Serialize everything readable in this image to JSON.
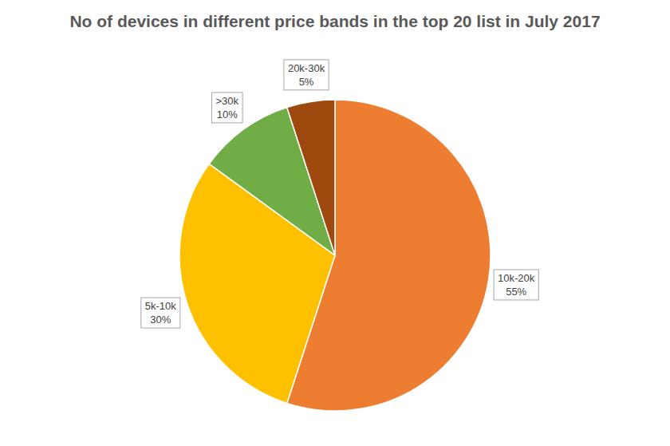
{
  "chart_data": {
    "type": "pie",
    "title": "No of devices in different price bands in the top 20 list in July 2017",
    "categories": [
      "10k-20k",
      "5k-10k",
      ">30k",
      "20k-30k"
    ],
    "values": [
      55,
      30,
      10,
      5
    ],
    "value_labels": [
      "55%",
      "30%",
      "10%",
      "5%"
    ],
    "colors": [
      "#ed7d31",
      "#ffc000",
      "#70ad47",
      "#9e480e"
    ],
    "data_labels": true
  }
}
